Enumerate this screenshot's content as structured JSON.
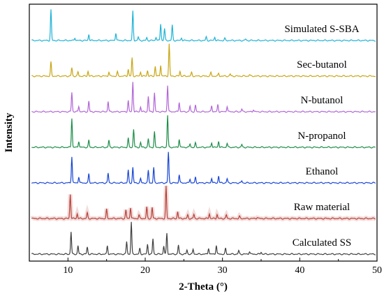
{
  "chart_data": {
    "type": "line",
    "title": "",
    "xlabel": "2-Theta (°)",
    "ylabel": "Intensity",
    "xlim": [
      5,
      50
    ],
    "xticks": [
      10,
      20,
      30,
      40,
      50
    ],
    "grid": false,
    "legend": "none",
    "series": [
      {
        "name": "Simulated S-SBA",
        "color": "#1fb3d6",
        "peaks": [
          [
            7.8,
            44
          ],
          [
            10.9,
            4
          ],
          [
            12.7,
            9
          ],
          [
            16.2,
            11
          ],
          [
            18.4,
            42
          ],
          [
            19.1,
            5
          ],
          [
            20.2,
            4
          ],
          [
            21.4,
            5
          ],
          [
            22.0,
            24
          ],
          [
            22.5,
            17
          ],
          [
            23.5,
            22
          ],
          [
            24.7,
            4
          ],
          [
            27.9,
            5
          ],
          [
            29.0,
            5
          ],
          [
            30.3,
            3
          ],
          [
            33.0,
            2
          ]
        ]
      },
      {
        "name": "Sec-butanol",
        "color": "#c9a614",
        "peaks": [
          [
            7.8,
            20
          ],
          [
            10.5,
            12
          ],
          [
            11.3,
            6
          ],
          [
            12.6,
            7
          ],
          [
            15.3,
            6
          ],
          [
            16.4,
            6
          ],
          [
            17.8,
            10
          ],
          [
            18.3,
            26
          ],
          [
            19.4,
            6
          ],
          [
            20.3,
            8
          ],
          [
            21.3,
            14
          ],
          [
            22.0,
            16
          ],
          [
            23.1,
            46
          ],
          [
            24.5,
            7
          ],
          [
            26.0,
            5
          ],
          [
            28.5,
            5
          ],
          [
            29.5,
            4
          ],
          [
            31.0,
            3
          ],
          [
            33.5,
            2
          ]
        ]
      },
      {
        "name": "N-butanol",
        "color": "#b266d8",
        "peaks": [
          [
            10.5,
            28
          ],
          [
            11.4,
            8
          ],
          [
            12.7,
            15
          ],
          [
            15.2,
            15
          ],
          [
            17.8,
            16
          ],
          [
            18.4,
            43
          ],
          [
            19.4,
            7
          ],
          [
            20.4,
            22
          ],
          [
            21.2,
            27
          ],
          [
            22.9,
            38
          ],
          [
            24.4,
            14
          ],
          [
            25.8,
            8
          ],
          [
            26.5,
            9
          ],
          [
            28.6,
            9
          ],
          [
            29.4,
            10
          ],
          [
            30.6,
            8
          ],
          [
            32.5,
            4
          ],
          [
            34.0,
            3
          ]
        ]
      },
      {
        "name": "N-propanol",
        "color": "#1e8e4a",
        "peaks": [
          [
            10.5,
            42
          ],
          [
            11.4,
            9
          ],
          [
            12.7,
            10
          ],
          [
            15.3,
            10
          ],
          [
            17.8,
            13
          ],
          [
            18.5,
            26
          ],
          [
            19.4,
            7
          ],
          [
            20.4,
            12
          ],
          [
            21.2,
            22
          ],
          [
            22.9,
            46
          ],
          [
            24.4,
            12
          ],
          [
            25.8,
            5
          ],
          [
            26.5,
            6
          ],
          [
            28.6,
            7
          ],
          [
            29.5,
            9
          ],
          [
            30.6,
            6
          ],
          [
            32.5,
            4
          ]
        ]
      },
      {
        "name": "Ethanol",
        "color": "#1846d6",
        "peaks": [
          [
            10.5,
            38
          ],
          [
            11.4,
            9
          ],
          [
            12.7,
            13
          ],
          [
            15.2,
            14
          ],
          [
            17.8,
            18
          ],
          [
            18.4,
            22
          ],
          [
            19.4,
            6
          ],
          [
            20.4,
            18
          ],
          [
            21.1,
            22
          ],
          [
            23.0,
            44
          ],
          [
            24.4,
            12
          ],
          [
            25.8,
            6
          ],
          [
            26.5,
            8
          ],
          [
            28.6,
            7
          ],
          [
            29.5,
            10
          ],
          [
            30.6,
            6
          ],
          [
            32.5,
            3
          ]
        ]
      },
      {
        "name": "Raw material",
        "color": "#b8403a",
        "peaks": [
          [
            10.3,
            35
          ],
          [
            11.2,
            7
          ],
          [
            12.5,
            8
          ],
          [
            15.0,
            13
          ],
          [
            17.5,
            12
          ],
          [
            18.1,
            16
          ],
          [
            19.2,
            5
          ],
          [
            20.2,
            16
          ],
          [
            20.9,
            16
          ],
          [
            22.7,
            46
          ],
          [
            24.2,
            10
          ],
          [
            25.5,
            5
          ],
          [
            26.3,
            6
          ],
          [
            28.3,
            7
          ],
          [
            29.3,
            6
          ],
          [
            30.5,
            5
          ],
          [
            32.2,
            3
          ],
          [
            34.5,
            2
          ]
        ],
        "shadow": true
      },
      {
        "name": "Calculated SS",
        "color": "#404040",
        "peaks": [
          [
            10.4,
            32
          ],
          [
            11.3,
            12
          ],
          [
            12.5,
            10
          ],
          [
            15.1,
            12
          ],
          [
            17.6,
            18
          ],
          [
            18.2,
            46
          ],
          [
            19.3,
            8
          ],
          [
            20.3,
            14
          ],
          [
            21.0,
            22
          ],
          [
            22.4,
            12
          ],
          [
            22.8,
            30
          ],
          [
            24.3,
            13
          ],
          [
            25.4,
            6
          ],
          [
            26.2,
            7
          ],
          [
            28.2,
            9
          ],
          [
            29.2,
            13
          ],
          [
            30.4,
            8
          ],
          [
            32.1,
            5
          ],
          [
            33.5,
            4
          ],
          [
            35.0,
            3
          ]
        ]
      }
    ]
  }
}
